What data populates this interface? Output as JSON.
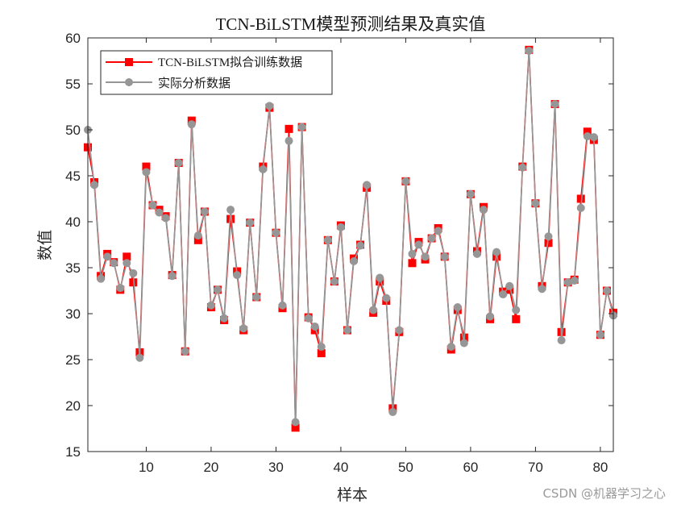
{
  "chart_data": {
    "type": "line",
    "title": "TCN-BiLSTM模型预测结果及真实值",
    "xlabel": "样本",
    "ylabel": "数值",
    "xlim": [
      1,
      82
    ],
    "ylim": [
      15,
      60
    ],
    "xticks": [
      10,
      20,
      30,
      40,
      50,
      60,
      70,
      80
    ],
    "yticks": [
      15,
      20,
      25,
      30,
      35,
      40,
      45,
      50,
      55,
      60
    ],
    "grid": false,
    "legend_position": "upper-left",
    "x": [
      1,
      2,
      3,
      4,
      5,
      6,
      7,
      8,
      9,
      10,
      11,
      12,
      13,
      14,
      15,
      16,
      17,
      18,
      19,
      20,
      21,
      22,
      23,
      24,
      25,
      26,
      27,
      28,
      29,
      30,
      31,
      32,
      33,
      34,
      35,
      36,
      37,
      38,
      39,
      40,
      41,
      42,
      43,
      44,
      45,
      46,
      47,
      48,
      49,
      50,
      51,
      52,
      53,
      54,
      55,
      56,
      57,
      58,
      59,
      60,
      61,
      62,
      63,
      64,
      65,
      66,
      67,
      68,
      69,
      70,
      71,
      72,
      73,
      74,
      75,
      76,
      77,
      78,
      79,
      80,
      81,
      82
    ],
    "series": [
      {
        "name": "TCN-BiLSTM拟合训练数据",
        "color": "#ff0000",
        "marker": "square",
        "values": [
          48.1,
          44.3,
          34.1,
          36.5,
          35.6,
          32.6,
          36.2,
          33.4,
          25.8,
          46.0,
          41.8,
          41.3,
          40.6,
          34.2,
          46.4,
          25.9,
          51.0,
          38.0,
          41.1,
          30.7,
          32.6,
          29.3,
          40.3,
          34.6,
          28.2,
          39.9,
          31.8,
          46.0,
          52.4,
          38.8,
          30.6,
          50.1,
          17.6,
          50.3,
          29.6,
          28.2,
          25.7,
          38.0,
          33.5,
          39.6,
          28.2,
          36.0,
          37.5,
          43.7,
          30.1,
          33.5,
          31.4,
          19.7,
          28.0,
          44.4,
          35.5,
          37.8,
          35.9,
          38.2,
          39.3,
          36.2,
          26.1,
          30.4,
          27.4,
          43.0,
          36.8,
          41.6,
          29.4,
          36.2,
          32.4,
          32.6,
          29.4,
          46.0,
          58.7,
          42.0,
          33.0,
          37.7,
          52.8,
          28.0,
          33.4,
          33.7,
          42.5,
          49.8,
          48.9,
          27.7,
          32.5,
          30.1
        ]
      },
      {
        "name": "实际分析数据",
        "color": "#969696",
        "marker": "circle",
        "values": [
          50.0,
          44.0,
          33.8,
          36.2,
          35.5,
          32.8,
          35.5,
          34.4,
          25.2,
          45.4,
          41.8,
          41.0,
          40.4,
          34.1,
          46.4,
          25.9,
          50.6,
          38.5,
          41.1,
          30.9,
          32.6,
          29.5,
          41.3,
          34.2,
          28.4,
          39.9,
          31.8,
          45.7,
          52.6,
          38.8,
          30.9,
          48.8,
          18.2,
          50.3,
          29.5,
          28.6,
          26.4,
          38.0,
          33.5,
          39.4,
          28.2,
          35.7,
          37.4,
          44.0,
          30.4,
          33.9,
          31.7,
          19.3,
          28.2,
          44.4,
          36.5,
          37.5,
          36.2,
          38.2,
          39.0,
          36.2,
          26.4,
          30.7,
          26.8,
          43.0,
          36.5,
          41.3,
          29.7,
          36.7,
          32.1,
          33.0,
          30.4,
          45.9,
          58.6,
          42.0,
          32.7,
          38.4,
          52.8,
          27.1,
          33.4,
          33.6,
          41.5,
          49.3,
          49.2,
          27.7,
          32.5,
          29.8
        ]
      }
    ]
  },
  "watermark": "CSDN @机器学习之心"
}
